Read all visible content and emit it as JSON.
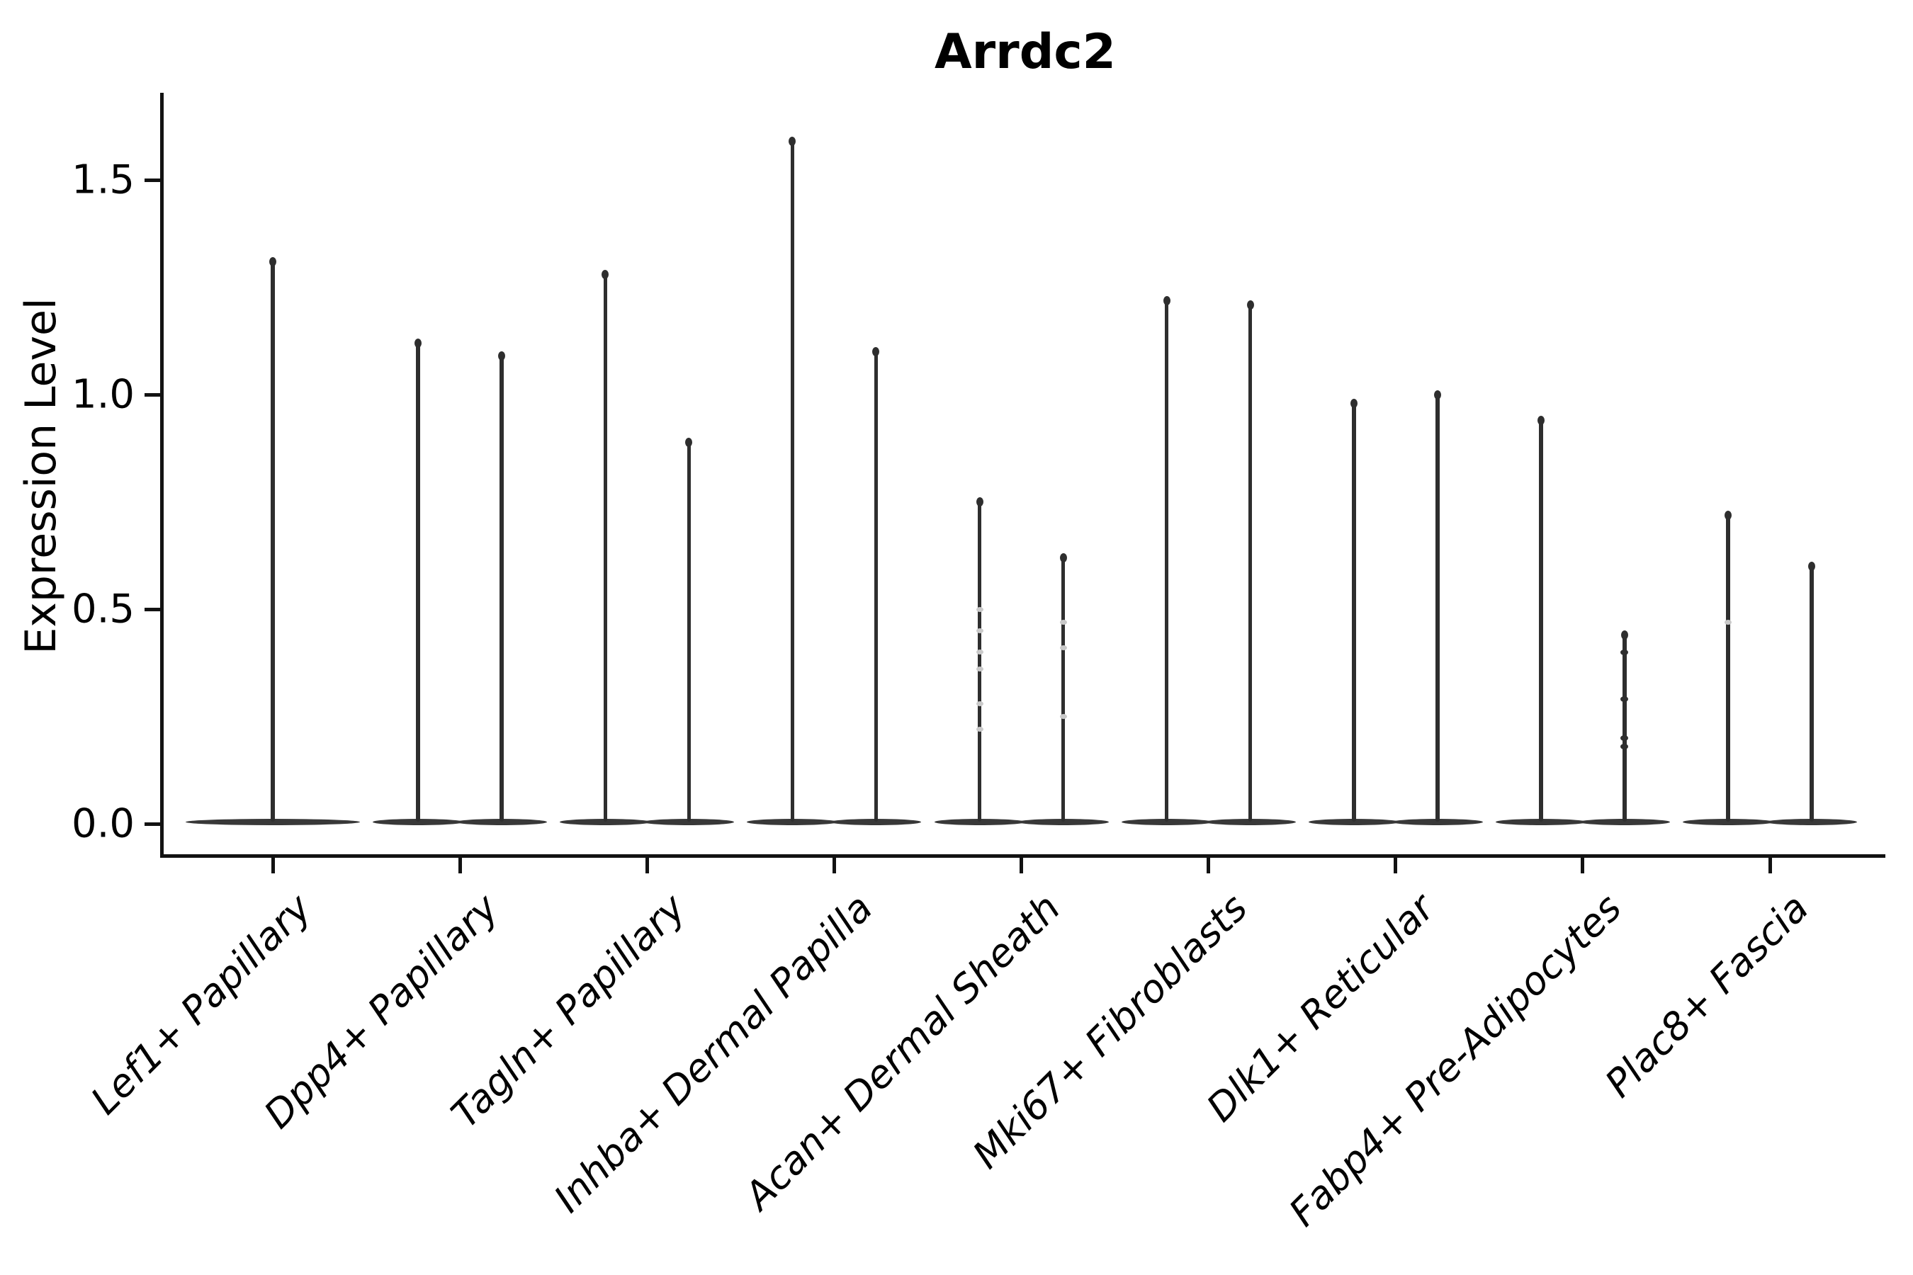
{
  "title": "Arrdc2",
  "chart_data": {
    "type": "violin",
    "title": "Arrdc2",
    "xlabel": "",
    "ylabel": "Expression Level",
    "ylim": [
      -0.08,
      1.72
    ],
    "y_ticks": [
      {
        "value": 0.0,
        "label": "0.0"
      },
      {
        "value": 0.5,
        "label": "0.5"
      },
      {
        "value": 1.0,
        "label": "1.0"
      },
      {
        "value": 1.5,
        "label": "1.5"
      }
    ],
    "grid": false,
    "legend": "none",
    "note": "Single-cell expression violin plot; violins are needle-thin spikes with nearly all density flattened at 0",
    "categories": [
      "Lef1+ Papillary",
      "Dpp4+ Papillary",
      "Tagln+ Papillary",
      "Inhba+ Dermal Papilla",
      "Acan+ Dermal Sheath",
      "Mki67+ Fibroblasts",
      "Dlk1+ Reticular",
      "Fabp4+ Pre-Adipocytes",
      "Plac8+ Fascia"
    ],
    "violins": [
      {
        "category_index": 0,
        "slot": "center",
        "peak": 1.32,
        "points": [],
        "points_faint": []
      },
      {
        "category_index": 1,
        "slot": "left",
        "peak": 1.13,
        "points": [],
        "points_faint": []
      },
      {
        "category_index": 1,
        "slot": "right",
        "peak": 1.1,
        "points": [],
        "points_faint": []
      },
      {
        "category_index": 2,
        "slot": "left",
        "peak": 1.29,
        "points": [],
        "points_faint": []
      },
      {
        "category_index": 2,
        "slot": "right",
        "peak": 0.9,
        "points": [],
        "points_faint": []
      },
      {
        "category_index": 3,
        "slot": "left",
        "peak": 1.6,
        "points": [],
        "points_faint": []
      },
      {
        "category_index": 3,
        "slot": "right",
        "peak": 1.11,
        "points": [],
        "points_faint": []
      },
      {
        "category_index": 4,
        "slot": "left",
        "peak": 0.76,
        "points": [],
        "points_faint": [
          0.5,
          0.45,
          0.4,
          0.36,
          0.28,
          0.22
        ]
      },
      {
        "category_index": 4,
        "slot": "right",
        "peak": 0.63,
        "points": [],
        "points_faint": [
          0.47,
          0.41,
          0.25
        ]
      },
      {
        "category_index": 5,
        "slot": "left",
        "peak": 1.23,
        "points": [],
        "points_faint": []
      },
      {
        "category_index": 5,
        "slot": "right",
        "peak": 1.22,
        "points": [],
        "points_faint": []
      },
      {
        "category_index": 6,
        "slot": "left",
        "peak": 0.99,
        "points": [],
        "points_faint": []
      },
      {
        "category_index": 6,
        "slot": "right",
        "peak": 1.01,
        "points": [],
        "points_faint": []
      },
      {
        "category_index": 7,
        "slot": "left",
        "peak": 0.95,
        "points": [],
        "points_faint": []
      },
      {
        "category_index": 7,
        "slot": "right",
        "peak": 0.45,
        "points": [
          0.4,
          0.29,
          0.2,
          0.18
        ],
        "points_faint": []
      },
      {
        "category_index": 8,
        "slot": "left",
        "peak": 0.73,
        "points": [],
        "points_faint": [
          0.47
        ]
      },
      {
        "category_index": 8,
        "slot": "right",
        "peak": 0.61,
        "points": [],
        "points_faint": []
      }
    ],
    "colors": {
      "ink": "#2e2e2e",
      "spine": "#121212",
      "text": "#000000",
      "faint_point": "#c9c9c9",
      "background": "#ffffff"
    }
  }
}
